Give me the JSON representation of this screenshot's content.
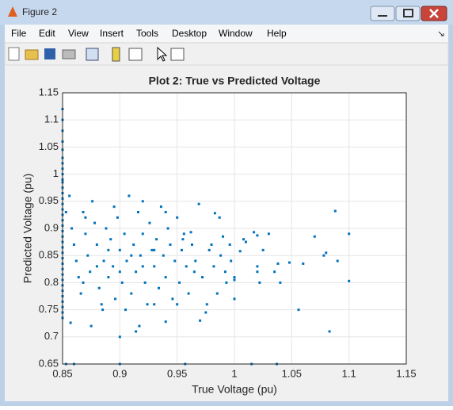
{
  "window": {
    "title": "Figure 2",
    "menu": [
      "File",
      "Edit",
      "View",
      "Insert",
      "Tools",
      "Desktop",
      "Window",
      "Help"
    ]
  },
  "chart_data": {
    "type": "scatter",
    "title": "Plot 2: True vs Predicted Voltage",
    "xlabel": "True Voltage (pu)",
    "ylabel": "Predicted Voltage (pu)",
    "color": "#0072bd",
    "grid": true,
    "xlim": [
      0.85,
      1.15
    ],
    "xticks": [
      0.85,
      0.9,
      0.95,
      1,
      1.05,
      1.1,
      1.15
    ],
    "ylim": [
      0.65,
      1.15
    ],
    "yticks": [
      0.65,
      0.7,
      0.75,
      0.8,
      0.85,
      0.9,
      0.95,
      1,
      1.05,
      1.1,
      1.15
    ],
    "x": [
      0.85,
      0.85,
      0.85,
      0.85,
      0.85,
      0.85,
      0.85,
      0.85,
      0.85,
      0.85,
      0.85,
      0.85,
      0.85,
      0.85,
      0.85,
      0.85,
      0.85,
      0.85,
      0.85,
      0.85,
      0.85,
      0.85,
      0.85,
      0.85,
      0.85,
      0.85,
      0.85,
      0.85,
      0.85,
      0.85,
      0.85,
      0.85,
      0.85,
      0.85,
      0.85,
      0.85,
      0.853,
      0.856,
      0.858,
      0.86,
      0.862,
      0.864,
      0.866,
      0.868,
      0.87,
      0.872,
      0.874,
      0.876,
      0.878,
      0.88,
      0.882,
      0.884,
      0.886,
      0.888,
      0.89,
      0.892,
      0.894,
      0.896,
      0.898,
      0.9,
      0.902,
      0.904,
      0.906,
      0.908,
      0.91,
      0.912,
      0.914,
      0.916,
      0.918,
      0.92,
      0.922,
      0.924,
      0.926,
      0.928,
      0.93,
      0.932,
      0.934,
      0.936,
      0.938,
      0.94,
      0.942,
      0.944,
      0.946,
      0.948,
      0.95,
      0.952,
      0.954,
      0.956,
      0.958,
      0.96,
      0.963,
      0.966,
      0.972,
      0.978,
      0.982,
      0.988,
      0.992,
      0.996,
      0.857,
      0.875,
      0.9,
      0.914,
      0.917,
      0.94,
      0.868,
      0.88,
      0.89,
      0.9,
      0.91,
      0.92,
      0.93,
      0.87,
      0.895,
      0.92,
      0.94,
      0.885,
      0.905,
      0.93,
      0.95,
      1.088,
      1.1,
      1.1,
      1.083,
      1.056,
      1.06,
      1.07,
      1.078,
      1.08,
      1.09,
      1.04,
      1.048,
      1.038,
      1.035,
      1.02,
      1.017,
      1.03,
      1.025,
      1.02,
      1.02,
      1.022,
      1.01,
      1.008,
      1.005,
      1,
      1,
      1,
      0.997,
      0.993,
      0.99,
      0.987,
      0.983,
      0.98,
      0.985,
      0.976,
      0.97,
      0.975,
      0.965,
      0.962,
      0.969,
      0.955,
      0.853,
      0.86,
      0.9,
      0.957,
      1.015,
      1.037
    ],
    "values": [
      1.12,
      1.1,
      1.08,
      1.06,
      1.045,
      1.03,
      1.02,
      1.01,
      1,
      0.99,
      0.985,
      0.975,
      0.965,
      0.955,
      0.945,
      0.935,
      0.925,
      0.915,
      0.905,
      0.895,
      0.885,
      0.875,
      0.865,
      0.855,
      0.845,
      0.835,
      0.825,
      0.815,
      0.805,
      0.795,
      0.785,
      0.775,
      0.765,
      0.755,
      0.745,
      0.735,
      0.93,
      0.96,
      0.9,
      0.87,
      0.84,
      0.81,
      0.78,
      0.93,
      0.89,
      0.85,
      0.82,
      0.95,
      0.91,
      0.87,
      0.79,
      0.76,
      0.84,
      0.9,
      0.81,
      0.88,
      0.83,
      0.77,
      0.92,
      0.86,
      0.8,
      0.89,
      0.84,
      0.96,
      0.78,
      0.87,
      0.82,
      0.93,
      0.85,
      0.89,
      0.8,
      0.76,
      0.91,
      0.86,
      0.83,
      0.88,
      0.79,
      0.94,
      0.85,
      0.81,
      0.9,
      0.87,
      0.77,
      0.84,
      0.92,
      0.8,
      0.86,
      0.89,
      0.83,
      0.78,
      0.87,
      0.84,
      0.81,
      0.86,
      0.83,
      0.85,
      0.82,
      0.87,
      0.726,
      0.72,
      0.7,
      0.71,
      0.72,
      0.728,
      0.8,
      0.83,
      0.86,
      0.82,
      0.85,
      0.83,
      0.86,
      0.92,
      0.94,
      0.95,
      0.93,
      0.75,
      0.75,
      0.76,
      0.76,
      0.932,
      0.89,
      0.803,
      0.71,
      0.75,
      0.835,
      0.885,
      0.85,
      0.855,
      0.84,
      0.8,
      0.837,
      0.835,
      0.82,
      0.887,
      0.893,
      0.89,
      0.86,
      0.83,
      0.82,
      0.8,
      0.875,
      0.88,
      0.858,
      0.77,
      0.81,
      0.805,
      0.84,
      0.8,
      0.885,
      0.92,
      0.928,
      0.87,
      0.78,
      0.76,
      0.73,
      0.745,
      0.82,
      0.893,
      0.945,
      0.88,
      0.65,
      0.65,
      0.65,
      0.65,
      0.65,
      0.65
    ]
  }
}
